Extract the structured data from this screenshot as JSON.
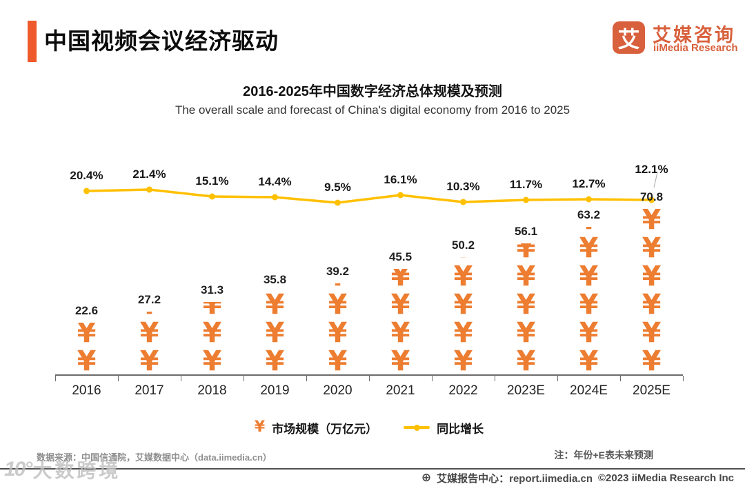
{
  "header": {
    "title": "中国视频会议经济驱动"
  },
  "logo": {
    "symbol": "艾",
    "name_cn": "艾媒咨询",
    "name_en": "iiMedia Research"
  },
  "chart": {
    "title": "2016-2025年中国数字经济总体规模及预测",
    "subtitle": "The overall scale and forecast of China's digital economy from 2016 to 2025"
  },
  "chart_data": {
    "type": "bar",
    "subtype": "pictorial-bar-with-line",
    "categories": [
      "2016",
      "2017",
      "2018",
      "2019",
      "2020",
      "2021",
      "2022",
      "2023E",
      "2024E",
      "2025E"
    ],
    "series": [
      {
        "name": "市场规模（万亿元）",
        "type": "bar",
        "values": [
          22.6,
          27.2,
          31.3,
          35.8,
          39.2,
          45.5,
          50.2,
          56.1,
          63.2,
          70.8
        ],
        "color": "#ED7D31",
        "pictogram_glyph": "¥",
        "unit_per_glyph": 12
      },
      {
        "name": "同比增长",
        "type": "line",
        "values": [
          20.4,
          21.4,
          15.1,
          14.4,
          9.5,
          16.1,
          10.3,
          11.7,
          12.7,
          12.1
        ],
        "value_suffix": "%",
        "color": "#FFC000"
      }
    ],
    "grid": false,
    "legend_position": "bottom",
    "data_labels": true
  },
  "footnotes": {
    "source": "数据来源：中国信通院，艾媒数据中心（data.iimedia.cn）",
    "note": "注：年份+E表未来预测"
  },
  "footer": {
    "globe_icon": "⊕",
    "report_center": "艾媒报告中心：report.iimedia.cn",
    "copyright": "©2023 iiMedia Research Inc"
  },
  "watermark": {
    "logo": "10°",
    "text": "大数跨境"
  },
  "colors": {
    "accent": "#EE5A2B",
    "logo": "#D8603C",
    "bar": "#ED7D31",
    "line": "#FFC000"
  }
}
